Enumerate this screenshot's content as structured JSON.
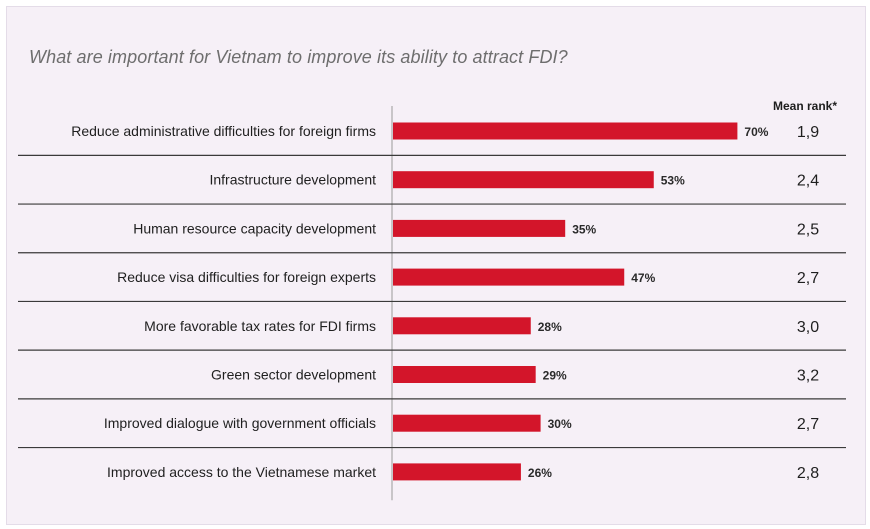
{
  "chart_data": {
    "type": "bar",
    "orientation": "horizontal",
    "title": "What are important for Vietnam to improve its ability to attract FDI?",
    "categories": [
      "Reduce administrative difficulties for foreign firms",
      "Infrastructure development",
      "Human resource capacity development",
      "Reduce visa difficulties for foreign experts",
      "More favorable tax rates for FDI firms",
      "Green sector development",
      "Improved dialogue with government officials",
      "Improved access to the Vietnamese market"
    ],
    "values": [
      70,
      53,
      35,
      47,
      28,
      29,
      30,
      26
    ],
    "value_labels": [
      "70%",
      "53%",
      "35%",
      "47%",
      "28%",
      "29%",
      "30%",
      "26%"
    ],
    "rank_header": "Mean rank*",
    "mean_ranks": [
      "1,9",
      "2,4",
      "2,5",
      "2,7",
      "3,0",
      "3,2",
      "2,7",
      "2,8"
    ],
    "xlim": [
      0,
      100
    ],
    "bar_color": "#d3152a",
    "grid": false,
    "legend": "none"
  }
}
